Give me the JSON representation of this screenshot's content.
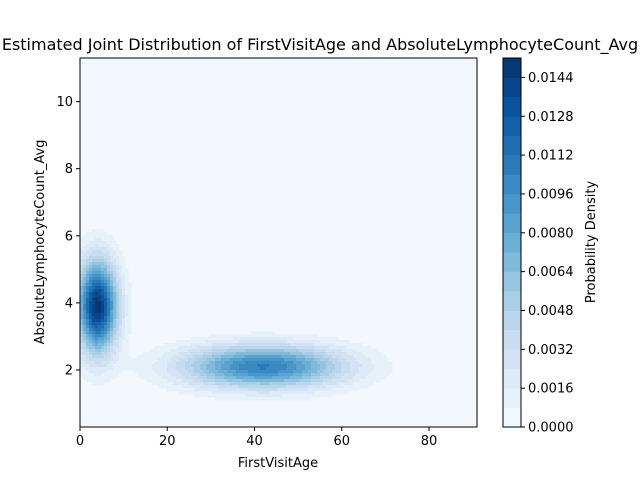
{
  "chart_data": {
    "type": "contour",
    "title": "Estimated Joint Distribution of FirstVisitAge and AbsoluteLymphocyteCount_Avg",
    "xlabel": "FirstVisitAge",
    "ylabel": "AbsoluteLymphocyteCount_Avg",
    "xlim": [
      0,
      91
    ],
    "ylim": [
      0.3,
      11.3
    ],
    "x_ticks": [
      0,
      20,
      40,
      60,
      80
    ],
    "y_ticks": [
      2,
      4,
      6,
      8,
      10
    ],
    "colormap": "Blues",
    "colorbar": {
      "label": "Probability Density",
      "range": [
        0,
        0.0152
      ],
      "ticks": [
        "0.0000",
        "0.0016",
        "0.0032",
        "0.0048",
        "0.0064",
        "0.0080",
        "0.0096",
        "0.0112",
        "0.0128",
        "0.0144"
      ],
      "level_step": 0.0008
    },
    "density_components": [
      {
        "x_mean": 4,
        "y_mean": 3.9,
        "x_sd": 3.2,
        "y_sd": 0.95,
        "peak_density": 0.0148
      },
      {
        "x_mean": 42,
        "y_mean": 2.1,
        "x_sd": 13,
        "y_sd": 0.45,
        "peak_density": 0.0105
      }
    ],
    "grid": false,
    "legend": "colorbar-right"
  }
}
